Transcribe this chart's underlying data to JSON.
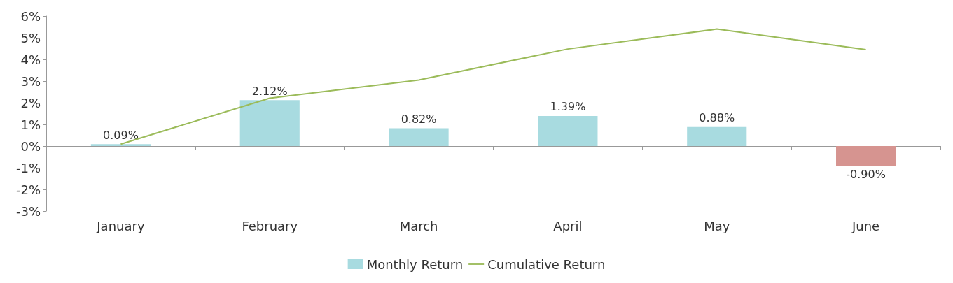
{
  "chart_data": {
    "type": "bar",
    "categories": [
      "January",
      "February",
      "March",
      "April",
      "May",
      "June"
    ],
    "series": [
      {
        "name": "Monthly Return",
        "colors": [
          "#a8dbe0",
          "#a8dbe0",
          "#a8dbe0",
          "#a8dbe0",
          "#a8dbe0",
          "#d69490"
        ],
        "values": [
          0.09,
          2.12,
          0.82,
          1.39,
          0.88,
          -0.9
        ],
        "value_labels": [
          "0.09%",
          "2.12%",
          "0.82%",
          "1.39%",
          "0.88%",
          "-0.90%"
        ]
      },
      {
        "name": "Cumulative Return",
        "type": "line",
        "color": "#9bbb59",
        "values": [
          0.09,
          2.21,
          3.05,
          4.48,
          5.4,
          4.45
        ]
      }
    ],
    "ylim": [
      -3,
      6
    ],
    "yticks": [
      {
        "value": -3,
        "label": "-3%"
      },
      {
        "value": -2,
        "label": "-2%"
      },
      {
        "value": -1,
        "label": "-1%"
      },
      {
        "value": 0,
        "label": "0%"
      },
      {
        "value": 1,
        "label": "1%"
      },
      {
        "value": 2,
        "label": "2%"
      },
      {
        "value": 3,
        "label": "3%"
      },
      {
        "value": 4,
        "label": "4%"
      },
      {
        "value": 5,
        "label": "5%"
      },
      {
        "value": 6,
        "label": "6%"
      }
    ],
    "legend": "bottom",
    "marker": "none"
  }
}
